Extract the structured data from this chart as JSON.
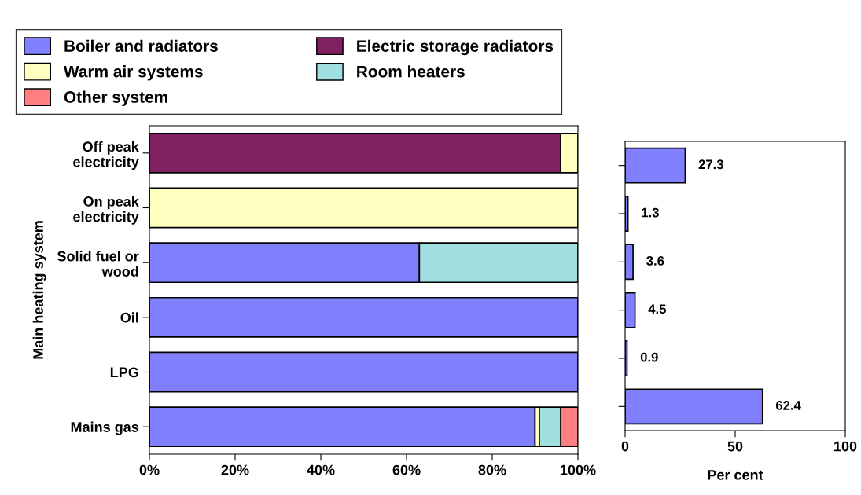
{
  "chart_data": [
    {
      "type": "bar",
      "orientation": "horizontal",
      "stacked": true,
      "ylabel": "Main heating system",
      "categories": [
        "Off peak\nelectricity",
        "On peak\nelectricity",
        "Solid fuel or\nwood",
        "Oil",
        "LPG",
        "Mains gas"
      ],
      "series": [
        {
          "name": "Boiler and radiators",
          "color": "#8080ff",
          "values": [
            0,
            0,
            63,
            100,
            100,
            90
          ]
        },
        {
          "name": "Electric storage radiators",
          "color": "#802060",
          "values": [
            96,
            0,
            0,
            0,
            0,
            0
          ]
        },
        {
          "name": "Warm air systems",
          "color": "#ffffc0",
          "values": [
            4,
            100,
            0,
            0,
            0,
            1
          ]
        },
        {
          "name": "Room heaters",
          "color": "#a0e0e0",
          "values": [
            0,
            0,
            37,
            0,
            0,
            5
          ]
        },
        {
          "name": "Other system",
          "color": "#ff8080",
          "values": [
            0,
            0,
            0,
            0,
            0,
            4
          ]
        }
      ],
      "xlim": [
        0,
        100
      ],
      "xticks": [
        {
          "value": 0,
          "label": "0%"
        },
        {
          "value": 20,
          "label": "20%"
        },
        {
          "value": 40,
          "label": "40%"
        },
        {
          "value": 60,
          "label": "60%"
        },
        {
          "value": 80,
          "label": "80%"
        },
        {
          "value": 100,
          "label": "100%"
        }
      ],
      "legend": "top",
      "grid": false
    },
    {
      "type": "bar",
      "orientation": "horizontal",
      "xlabel": "Per cent",
      "categories": [
        null,
        null,
        null,
        null,
        null,
        null
      ],
      "values": [
        27.3,
        1.3,
        3.6,
        4.5,
        0.9,
        62.4
      ],
      "color": "#8080ff",
      "xlim": [
        0,
        100
      ],
      "xticks": [
        0,
        50,
        100
      ],
      "data_labels": true,
      "grid": false
    }
  ]
}
